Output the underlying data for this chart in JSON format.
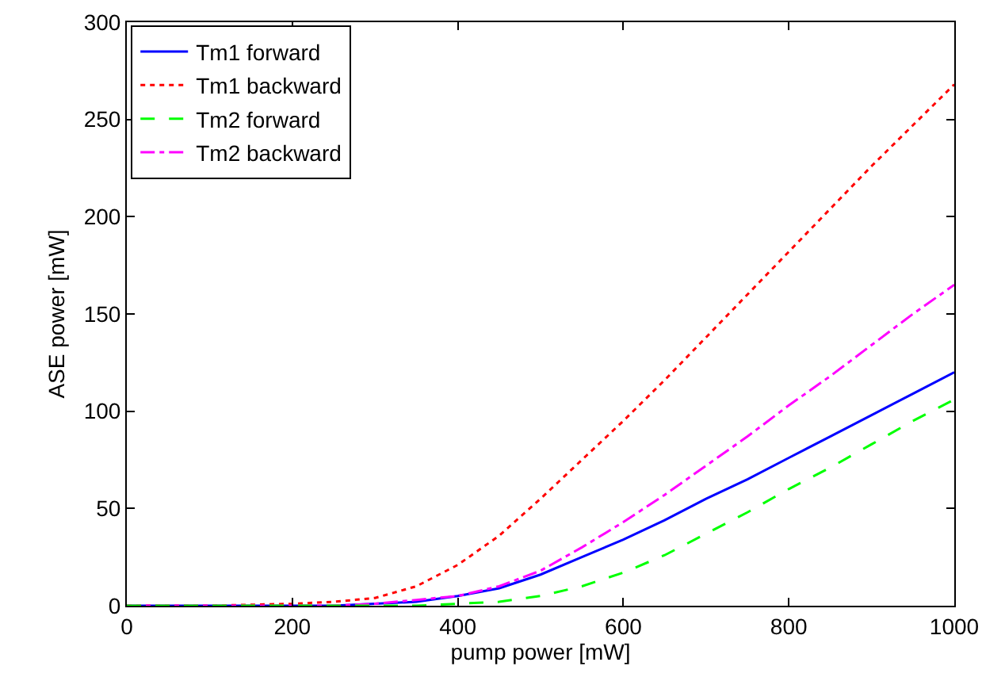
{
  "chart_data": {
    "type": "line",
    "xlabel": "pump power [mW]",
    "ylabel": "ASE power [mW]",
    "x": [
      0,
      100,
      200,
      250,
      300,
      350,
      400,
      450,
      500,
      550,
      600,
      650,
      700,
      750,
      800,
      850,
      900,
      950,
      1000
    ],
    "series": [
      {
        "name": "Tm1 forward",
        "color": "#0000ff",
        "line_style": "solid",
        "values": [
          0,
          0,
          0,
          0,
          1,
          2,
          5,
          9,
          16,
          25,
          34,
          44,
          55,
          65,
          76,
          87,
          98,
          109,
          120
        ]
      },
      {
        "name": "Tm1 backward",
        "color": "#ff0000",
        "line_style": "dotted",
        "values": [
          0,
          0,
          1,
          2,
          4,
          10,
          21,
          36,
          55,
          75,
          95,
          116,
          138,
          160,
          182,
          204,
          226,
          247,
          268
        ]
      },
      {
        "name": "Tm2 forward",
        "color": "#00ff00",
        "line_style": "dashed",
        "values": [
          0,
          0,
          0,
          0,
          0,
          0,
          1,
          2,
          5,
          10,
          17,
          26,
          37,
          48,
          60,
          71,
          83,
          95,
          106
        ]
      },
      {
        "name": "Tm2 backward",
        "color": "#ff00ff",
        "line_style": "dashdot",
        "values": [
          0,
          0,
          0,
          0,
          1,
          3,
          5,
          10,
          18,
          30,
          43,
          57,
          72,
          87,
          103,
          118,
          134,
          150,
          165
        ]
      }
    ],
    "xlim": [
      0,
      1000
    ],
    "xticks": [
      0,
      200,
      400,
      600,
      800,
      1000
    ],
    "ylim": [
      0,
      300
    ],
    "yticks": [
      0,
      50,
      100,
      150,
      200,
      250,
      300
    ],
    "grid": false,
    "legend": "top left",
    "marker": "none"
  }
}
